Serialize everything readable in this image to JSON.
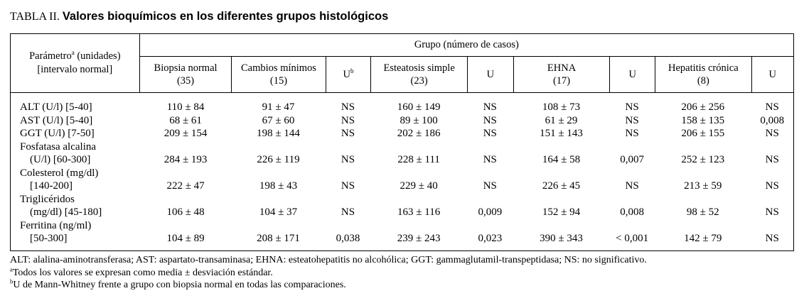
{
  "colors": {
    "text": "#000000",
    "background": "#ffffff",
    "border": "#000000"
  },
  "title": {
    "prefix": "TABLA II.",
    "main": "Valores bioquímicos en los diferentes grupos histológicos"
  },
  "table": {
    "param_header": {
      "name": "Parámetro",
      "sup": "a",
      "units": " (unidades)",
      "line2": "[intervalo normal]"
    },
    "group_header": "Grupo (número de casos)",
    "columns": [
      {
        "label": "Biopsia normal",
        "sup": "",
        "n": "(35)"
      },
      {
        "label": "Cambios mínimos",
        "sup": "",
        "n": "(15)"
      },
      {
        "label": "U",
        "sup": "b",
        "n": ""
      },
      {
        "label": "Esteatosis simple",
        "sup": "",
        "n": "(23)"
      },
      {
        "label": "U",
        "sup": "",
        "n": ""
      },
      {
        "label": "EHNA",
        "sup": "",
        "n": "(17)"
      },
      {
        "label": "U",
        "sup": "",
        "n": ""
      },
      {
        "label": "Hepatitis crónica",
        "sup": "",
        "n": "(8)"
      },
      {
        "label": "U",
        "sup": "",
        "n": ""
      }
    ],
    "rows": [
      {
        "param1": "ALT (U/l) [5-40]",
        "values": [
          "110 ± 84",
          "91 ± 47",
          "NS",
          "160 ± 149",
          "NS",
          "108 ± 73",
          "NS",
          "206 ± 256",
          "NS"
        ]
      },
      {
        "param1": "AST (U/l) [5-40]",
        "values": [
          "68 ± 61",
          "67 ± 60",
          "NS",
          "89 ± 100",
          "NS",
          "61 ± 29",
          "NS",
          "158 ± 135",
          "0,008"
        ]
      },
      {
        "param1": "GGT (U/l) [7-50]",
        "values": [
          "209 ± 154",
          "198 ± 144",
          "NS",
          "202 ± 186",
          "NS",
          "151 ± 143",
          "NS",
          "206 ± 155",
          "NS"
        ]
      },
      {
        "param1": "Fosfatasa alcalina",
        "param2": "(U/l) [60-300]",
        "values": [
          "284 ± 193",
          "226 ± 119",
          "NS",
          "228 ± 111",
          "NS",
          "164 ± 58",
          "0,007",
          "252 ± 123",
          "NS"
        ]
      },
      {
        "param1": "Colesterol (mg/dl)",
        "param2": "[140-200]",
        "values": [
          "222 ± 47",
          "198 ± 43",
          "NS",
          "229 ± 40",
          "NS",
          "226 ± 45",
          "NS",
          "213 ± 59",
          "NS"
        ]
      },
      {
        "param1": "Triglicéridos",
        "param2": "(mg/dl) [45-180]",
        "values": [
          "106 ± 48",
          "104 ± 37",
          "NS",
          "163 ± 116",
          "0,009",
          "152 ± 94",
          "0,008",
          "98 ± 52",
          "NS"
        ]
      },
      {
        "param1": "Ferritina (ng/ml)",
        "param2": "[50-300]",
        "values": [
          "104 ± 89",
          "208 ± 171",
          "0,038",
          "239 ± 243",
          "0,023",
          "390 ± 343",
          "< 0,001",
          "142 ± 79",
          "NS"
        ]
      }
    ]
  },
  "footnotes": {
    "abbrev": "ALT: alalina-aminotransferasa; AST: aspartato-transaminasa; EHNA: esteatohepatitis no alcohólica; GGT: gammaglutamil-transpeptidasa; NS: no significativo.",
    "note_a_sup": "a",
    "note_a": "Todos los valores se expresan como media ± desviación estándar.",
    "note_b_sup": "b",
    "note_b": "U de Mann-Whitney frente a grupo con biopsia normal en todas las comparaciones."
  }
}
